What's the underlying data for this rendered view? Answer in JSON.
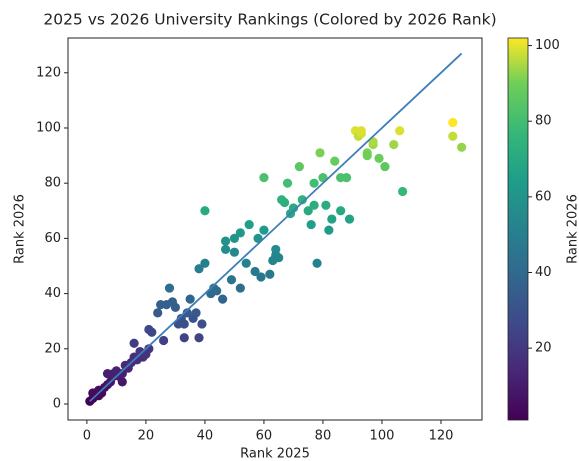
{
  "chart_data": {
    "type": "scatter",
    "title": "2025 vs 2026 University Rankings (Colored by 2026 Rank)",
    "x_label": "Rank 2025",
    "y_label": "Rank 2026",
    "x": [
      1,
      2,
      2,
      3,
      4,
      4,
      5,
      6,
      7,
      7,
      8,
      9,
      9,
      10,
      11,
      12,
      12,
      13,
      14,
      15,
      16,
      16,
      17,
      18,
      19,
      20,
      21,
      21,
      22,
      24,
      25,
      26,
      27,
      28,
      29,
      30,
      31,
      32,
      33,
      33,
      34,
      35,
      36,
      37,
      38,
      38,
      39,
      40,
      40,
      42,
      43,
      44,
      46,
      47,
      47,
      49,
      50,
      50,
      52,
      52,
      54,
      55,
      57,
      58,
      59,
      60,
      60,
      62,
      63,
      64,
      64,
      65,
      66,
      67,
      68,
      69,
      70,
      72,
      73,
      75,
      76,
      77,
      77,
      78,
      79,
      80,
      81,
      82,
      83,
      84,
      86,
      86,
      88,
      89,
      91,
      92,
      93,
      93,
      95,
      95,
      97,
      97,
      99,
      101,
      104,
      106,
      107,
      124,
      124,
      127
    ],
    "y": [
      1,
      2,
      4,
      3,
      5,
      3,
      4,
      6,
      7,
      11,
      8,
      10,
      11,
      12,
      10,
      8,
      11,
      14,
      13,
      15,
      22,
      17,
      16,
      19,
      17,
      18,
      20,
      27,
      26,
      33,
      36,
      23,
      36,
      42,
      37,
      35,
      29,
      31,
      24,
      29,
      33,
      38,
      31,
      33,
      24,
      49,
      29,
      51,
      70,
      40,
      42,
      41,
      38,
      59,
      56,
      45,
      60,
      55,
      42,
      62,
      51,
      65,
      48,
      60,
      46,
      82,
      63,
      47,
      52,
      56,
      54,
      53,
      74,
      73,
      80,
      69,
      71,
      86,
      74,
      70,
      65,
      72,
      80,
      51,
      91,
      82,
      72,
      63,
      67,
      88,
      70,
      82,
      82,
      67,
      99,
      97,
      98,
      99,
      91,
      90,
      94,
      95,
      89,
      86,
      94,
      99,
      77,
      102,
      97,
      93
    ],
    "trend_line": {
      "x": [
        1,
        127
      ],
      "y": [
        1,
        127
      ],
      "color": "#3a7fb8"
    },
    "colormap": "viridis",
    "clim": [
      1,
      102
    ],
    "colorbar_label": "Rank 2026",
    "colorbar_ticks": [
      20,
      40,
      60,
      80,
      100
    ],
    "xlim": [
      -6.4,
      133.9
    ],
    "ylim": [
      -5.8,
      132.6
    ],
    "xticks": [
      0,
      20,
      40,
      60,
      80,
      100,
      120
    ],
    "yticks": [
      0,
      20,
      40,
      60,
      80,
      100,
      120
    ]
  }
}
